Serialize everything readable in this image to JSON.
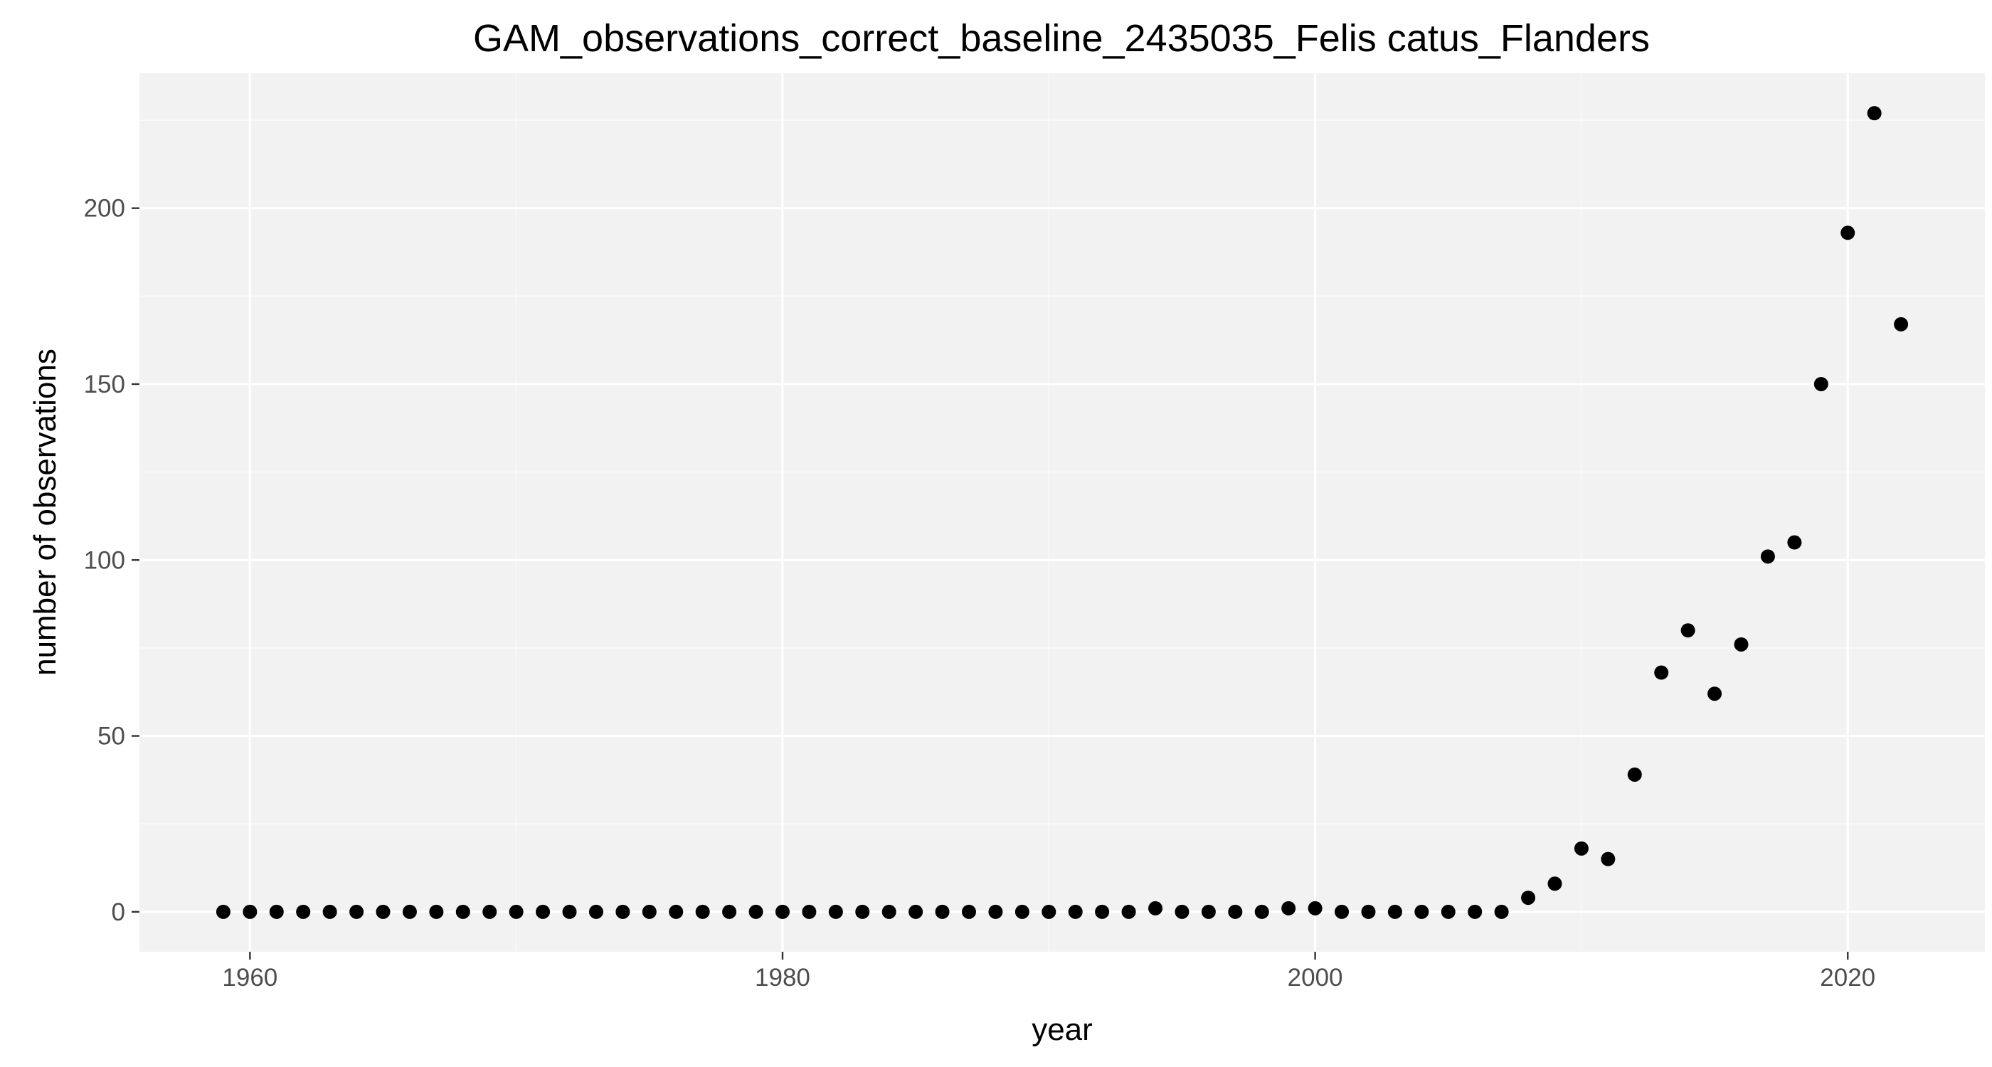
{
  "chart_data": {
    "type": "scatter",
    "title": "GAM_observations_correct_baseline_2435035_Felis catus_Flanders",
    "xlabel": "year",
    "ylabel": "number of observations",
    "xlim": [
      1955.85,
      2025.15
    ],
    "ylim": [
      -11.35,
      238.35
    ],
    "xticks": [
      1960,
      1980,
      2000,
      2020
    ],
    "xtick_labels": [
      "1960",
      "1980",
      "2000",
      "2020"
    ],
    "yticks": [
      0,
      50,
      100,
      150,
      200
    ],
    "ytick_labels": [
      "0",
      "50",
      "100",
      "150",
      "200"
    ],
    "grid": true,
    "legend": "none",
    "colors": {
      "panel_background": "#f2f2f2",
      "major_grid": "#ffffff",
      "minor_grid": "#f9f9f9",
      "point": "#000000",
      "tick_text": "#4d4d4d",
      "tick_mark": "#333333"
    },
    "series": [
      {
        "x": [
          1959,
          1960,
          1961,
          1962,
          1963,
          1964,
          1965,
          1966,
          1967,
          1968,
          1969,
          1970,
          1971,
          1972,
          1973,
          1974,
          1975,
          1976,
          1977,
          1978,
          1979,
          1980,
          1981,
          1982,
          1983,
          1984,
          1985,
          1986,
          1987,
          1988,
          1989,
          1990,
          1991,
          1992,
          1993,
          1994,
          1995,
          1996,
          1997,
          1998,
          1999,
          2000,
          2001,
          2002,
          2003,
          2004,
          2005,
          2006,
          2007,
          2008,
          2009,
          2010,
          2011,
          2012,
          2013,
          2014,
          2015,
          2016,
          2017,
          2018,
          2019,
          2020,
          2021,
          2022
        ],
        "y": [
          0,
          0,
          0,
          0,
          0,
          0,
          0,
          0,
          0,
          0,
          0,
          0,
          0,
          0,
          0,
          0,
          0,
          0,
          0,
          0,
          0,
          0,
          0,
          0,
          0,
          0,
          0,
          0,
          0,
          0,
          0,
          0,
          0,
          0,
          0,
          1,
          0,
          0,
          0,
          0,
          1,
          1,
          0,
          0,
          0,
          0,
          0,
          0,
          0,
          4,
          8,
          18,
          15,
          39,
          68,
          80,
          62,
          76,
          101,
          105,
          150,
          193,
          227,
          167
        ]
      }
    ]
  }
}
